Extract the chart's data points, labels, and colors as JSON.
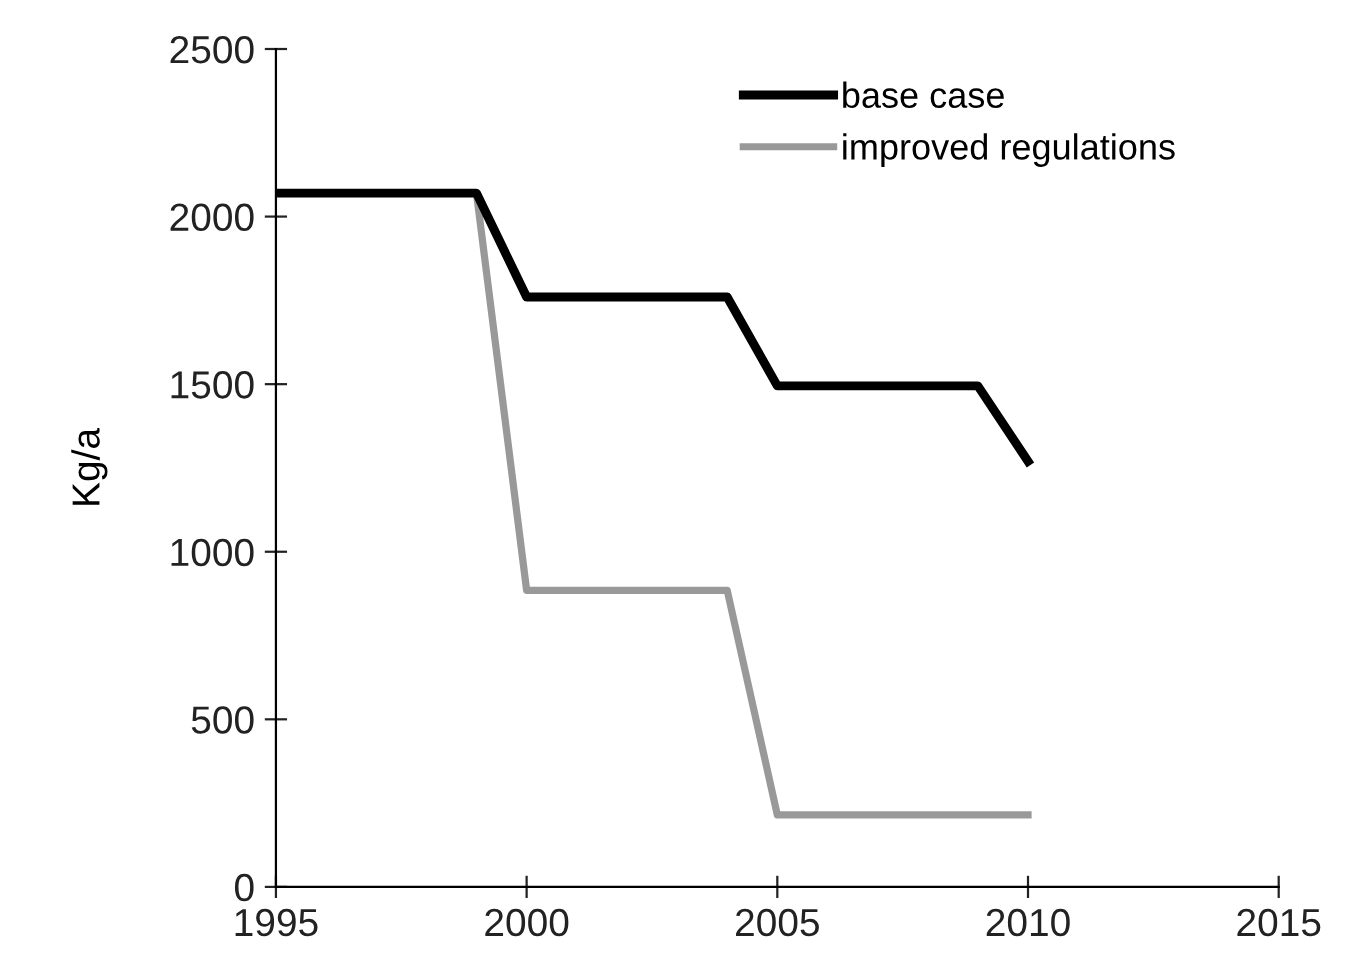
{
  "chart_data": {
    "type": "line",
    "ylabel": "Kg/a",
    "x": [
      1995,
      1999,
      2000,
      2004,
      2005,
      2009,
      2010
    ],
    "series": [
      {
        "name": "base case",
        "color": "#000000",
        "values": [
          2070,
          2070,
          1760,
          1760,
          1495,
          1495,
          1270
        ]
      },
      {
        "name": "improved regulations",
        "color": "#999999",
        "values": [
          2070,
          2070,
          885,
          885,
          215,
          215,
          215
        ]
      }
    ],
    "xlim": [
      1995,
      2015
    ],
    "xticks": [
      1995,
      2000,
      2005,
      2010,
      2015
    ],
    "ylim": [
      0,
      2500
    ],
    "yticks": [
      0,
      500,
      1000,
      1500,
      2000,
      2500
    ],
    "legend": "top right",
    "grid": false,
    "marker": "none",
    "line_style": "solid"
  }
}
